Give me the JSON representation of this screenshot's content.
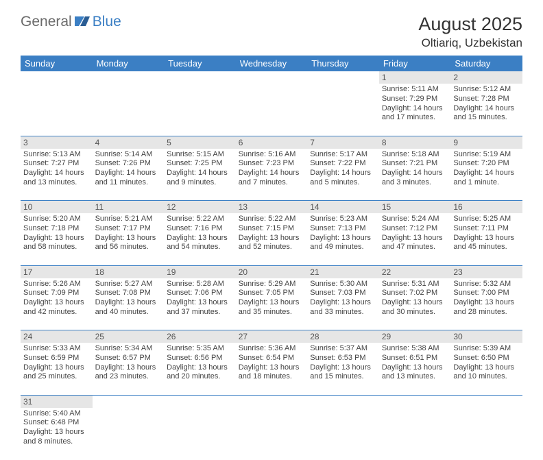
{
  "header": {
    "logo_general": "General",
    "logo_blue": "Blue",
    "month_title": "August 2025",
    "location": "Oltiariq, Uzbekistan"
  },
  "colors": {
    "accent": "#3b7fc4",
    "row_alt": "#e6e6e6",
    "bg": "#ffffff",
    "text": "#333333"
  },
  "day_headers": [
    "Sunday",
    "Monday",
    "Tuesday",
    "Wednesday",
    "Thursday",
    "Friday",
    "Saturday"
  ],
  "weeks": [
    [
      null,
      null,
      null,
      null,
      null,
      {
        "n": "1",
        "sr": "Sunrise: 5:11 AM",
        "ss": "Sunset: 7:29 PM",
        "dl": "Daylight: 14 hours and 17 minutes."
      },
      {
        "n": "2",
        "sr": "Sunrise: 5:12 AM",
        "ss": "Sunset: 7:28 PM",
        "dl": "Daylight: 14 hours and 15 minutes."
      }
    ],
    [
      {
        "n": "3",
        "sr": "Sunrise: 5:13 AM",
        "ss": "Sunset: 7:27 PM",
        "dl": "Daylight: 14 hours and 13 minutes."
      },
      {
        "n": "4",
        "sr": "Sunrise: 5:14 AM",
        "ss": "Sunset: 7:26 PM",
        "dl": "Daylight: 14 hours and 11 minutes."
      },
      {
        "n": "5",
        "sr": "Sunrise: 5:15 AM",
        "ss": "Sunset: 7:25 PM",
        "dl": "Daylight: 14 hours and 9 minutes."
      },
      {
        "n": "6",
        "sr": "Sunrise: 5:16 AM",
        "ss": "Sunset: 7:23 PM",
        "dl": "Daylight: 14 hours and 7 minutes."
      },
      {
        "n": "7",
        "sr": "Sunrise: 5:17 AM",
        "ss": "Sunset: 7:22 PM",
        "dl": "Daylight: 14 hours and 5 minutes."
      },
      {
        "n": "8",
        "sr": "Sunrise: 5:18 AM",
        "ss": "Sunset: 7:21 PM",
        "dl": "Daylight: 14 hours and 3 minutes."
      },
      {
        "n": "9",
        "sr": "Sunrise: 5:19 AM",
        "ss": "Sunset: 7:20 PM",
        "dl": "Daylight: 14 hours and 1 minute."
      }
    ],
    [
      {
        "n": "10",
        "sr": "Sunrise: 5:20 AM",
        "ss": "Sunset: 7:18 PM",
        "dl": "Daylight: 13 hours and 58 minutes."
      },
      {
        "n": "11",
        "sr": "Sunrise: 5:21 AM",
        "ss": "Sunset: 7:17 PM",
        "dl": "Daylight: 13 hours and 56 minutes."
      },
      {
        "n": "12",
        "sr": "Sunrise: 5:22 AM",
        "ss": "Sunset: 7:16 PM",
        "dl": "Daylight: 13 hours and 54 minutes."
      },
      {
        "n": "13",
        "sr": "Sunrise: 5:22 AM",
        "ss": "Sunset: 7:15 PM",
        "dl": "Daylight: 13 hours and 52 minutes."
      },
      {
        "n": "14",
        "sr": "Sunrise: 5:23 AM",
        "ss": "Sunset: 7:13 PM",
        "dl": "Daylight: 13 hours and 49 minutes."
      },
      {
        "n": "15",
        "sr": "Sunrise: 5:24 AM",
        "ss": "Sunset: 7:12 PM",
        "dl": "Daylight: 13 hours and 47 minutes."
      },
      {
        "n": "16",
        "sr": "Sunrise: 5:25 AM",
        "ss": "Sunset: 7:11 PM",
        "dl": "Daylight: 13 hours and 45 minutes."
      }
    ],
    [
      {
        "n": "17",
        "sr": "Sunrise: 5:26 AM",
        "ss": "Sunset: 7:09 PM",
        "dl": "Daylight: 13 hours and 42 minutes."
      },
      {
        "n": "18",
        "sr": "Sunrise: 5:27 AM",
        "ss": "Sunset: 7:08 PM",
        "dl": "Daylight: 13 hours and 40 minutes."
      },
      {
        "n": "19",
        "sr": "Sunrise: 5:28 AM",
        "ss": "Sunset: 7:06 PM",
        "dl": "Daylight: 13 hours and 37 minutes."
      },
      {
        "n": "20",
        "sr": "Sunrise: 5:29 AM",
        "ss": "Sunset: 7:05 PM",
        "dl": "Daylight: 13 hours and 35 minutes."
      },
      {
        "n": "21",
        "sr": "Sunrise: 5:30 AM",
        "ss": "Sunset: 7:03 PM",
        "dl": "Daylight: 13 hours and 33 minutes."
      },
      {
        "n": "22",
        "sr": "Sunrise: 5:31 AM",
        "ss": "Sunset: 7:02 PM",
        "dl": "Daylight: 13 hours and 30 minutes."
      },
      {
        "n": "23",
        "sr": "Sunrise: 5:32 AM",
        "ss": "Sunset: 7:00 PM",
        "dl": "Daylight: 13 hours and 28 minutes."
      }
    ],
    [
      {
        "n": "24",
        "sr": "Sunrise: 5:33 AM",
        "ss": "Sunset: 6:59 PM",
        "dl": "Daylight: 13 hours and 25 minutes."
      },
      {
        "n": "25",
        "sr": "Sunrise: 5:34 AM",
        "ss": "Sunset: 6:57 PM",
        "dl": "Daylight: 13 hours and 23 minutes."
      },
      {
        "n": "26",
        "sr": "Sunrise: 5:35 AM",
        "ss": "Sunset: 6:56 PM",
        "dl": "Daylight: 13 hours and 20 minutes."
      },
      {
        "n": "27",
        "sr": "Sunrise: 5:36 AM",
        "ss": "Sunset: 6:54 PM",
        "dl": "Daylight: 13 hours and 18 minutes."
      },
      {
        "n": "28",
        "sr": "Sunrise: 5:37 AM",
        "ss": "Sunset: 6:53 PM",
        "dl": "Daylight: 13 hours and 15 minutes."
      },
      {
        "n": "29",
        "sr": "Sunrise: 5:38 AM",
        "ss": "Sunset: 6:51 PM",
        "dl": "Daylight: 13 hours and 13 minutes."
      },
      {
        "n": "30",
        "sr": "Sunrise: 5:39 AM",
        "ss": "Sunset: 6:50 PM",
        "dl": "Daylight: 13 hours and 10 minutes."
      }
    ],
    [
      {
        "n": "31",
        "sr": "Sunrise: 5:40 AM",
        "ss": "Sunset: 6:48 PM",
        "dl": "Daylight: 13 hours and 8 minutes."
      },
      null,
      null,
      null,
      null,
      null,
      null
    ]
  ]
}
